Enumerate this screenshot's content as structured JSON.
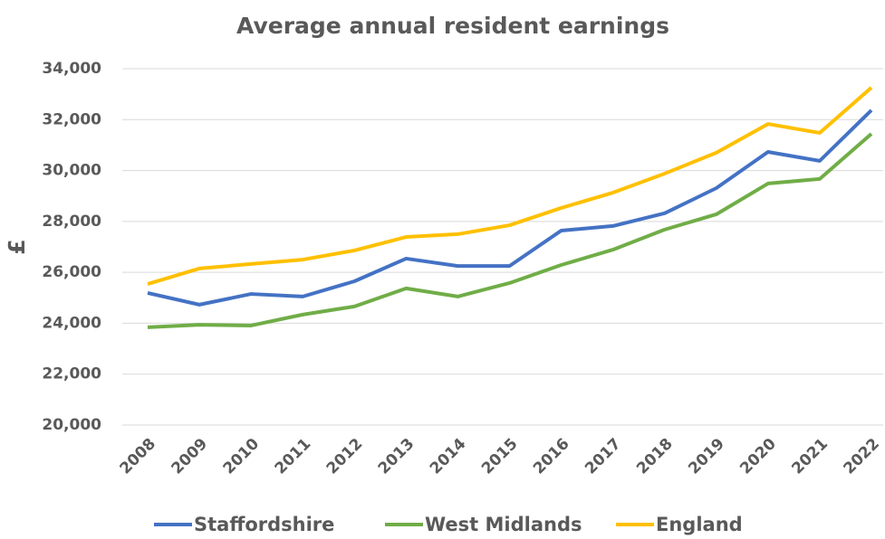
{
  "chart_data": {
    "type": "line",
    "title": "Average annual resident earnings",
    "y_label": "£",
    "categories": [
      "2008",
      "2009",
      "2010",
      "2011",
      "2012",
      "2013",
      "2014",
      "2015",
      "2016",
      "2017",
      "2018",
      "2019",
      "2020",
      "2021",
      "2022"
    ],
    "series": [
      {
        "name": "Staffordshire",
        "color": "#4472c4",
        "values": [
          25190,
          24730,
          25150,
          25050,
          25650,
          26540,
          26250,
          26250,
          27640,
          27820,
          28320,
          29310,
          30730,
          30380,
          32370
        ]
      },
      {
        "name": "West Midlands",
        "color": "#70ad47",
        "values": [
          23840,
          23940,
          23910,
          24340,
          24660,
          25370,
          25050,
          25580,
          26290,
          26890,
          27680,
          28280,
          29490,
          29670,
          31440
        ]
      },
      {
        "name": "England",
        "color": "#ffc000",
        "values": [
          25540,
          26150,
          26330,
          26500,
          26860,
          27390,
          27500,
          27850,
          28530,
          29130,
          29880,
          30700,
          31830,
          31480,
          33260
        ]
      }
    ],
    "ylim": [
      20000,
      34000
    ],
    "yticks": [
      {
        "value": 20000,
        "label": "20,000"
      },
      {
        "value": 22000,
        "label": "22,000"
      },
      {
        "value": 24000,
        "label": "24,000"
      },
      {
        "value": 26000,
        "label": "26,000"
      },
      {
        "value": 28000,
        "label": "28,000"
      },
      {
        "value": 30000,
        "label": "30,000"
      },
      {
        "value": 32000,
        "label": "32,000"
      },
      {
        "value": 34000,
        "label": "34,000"
      }
    ],
    "grid": true,
    "legend": "bottom"
  }
}
